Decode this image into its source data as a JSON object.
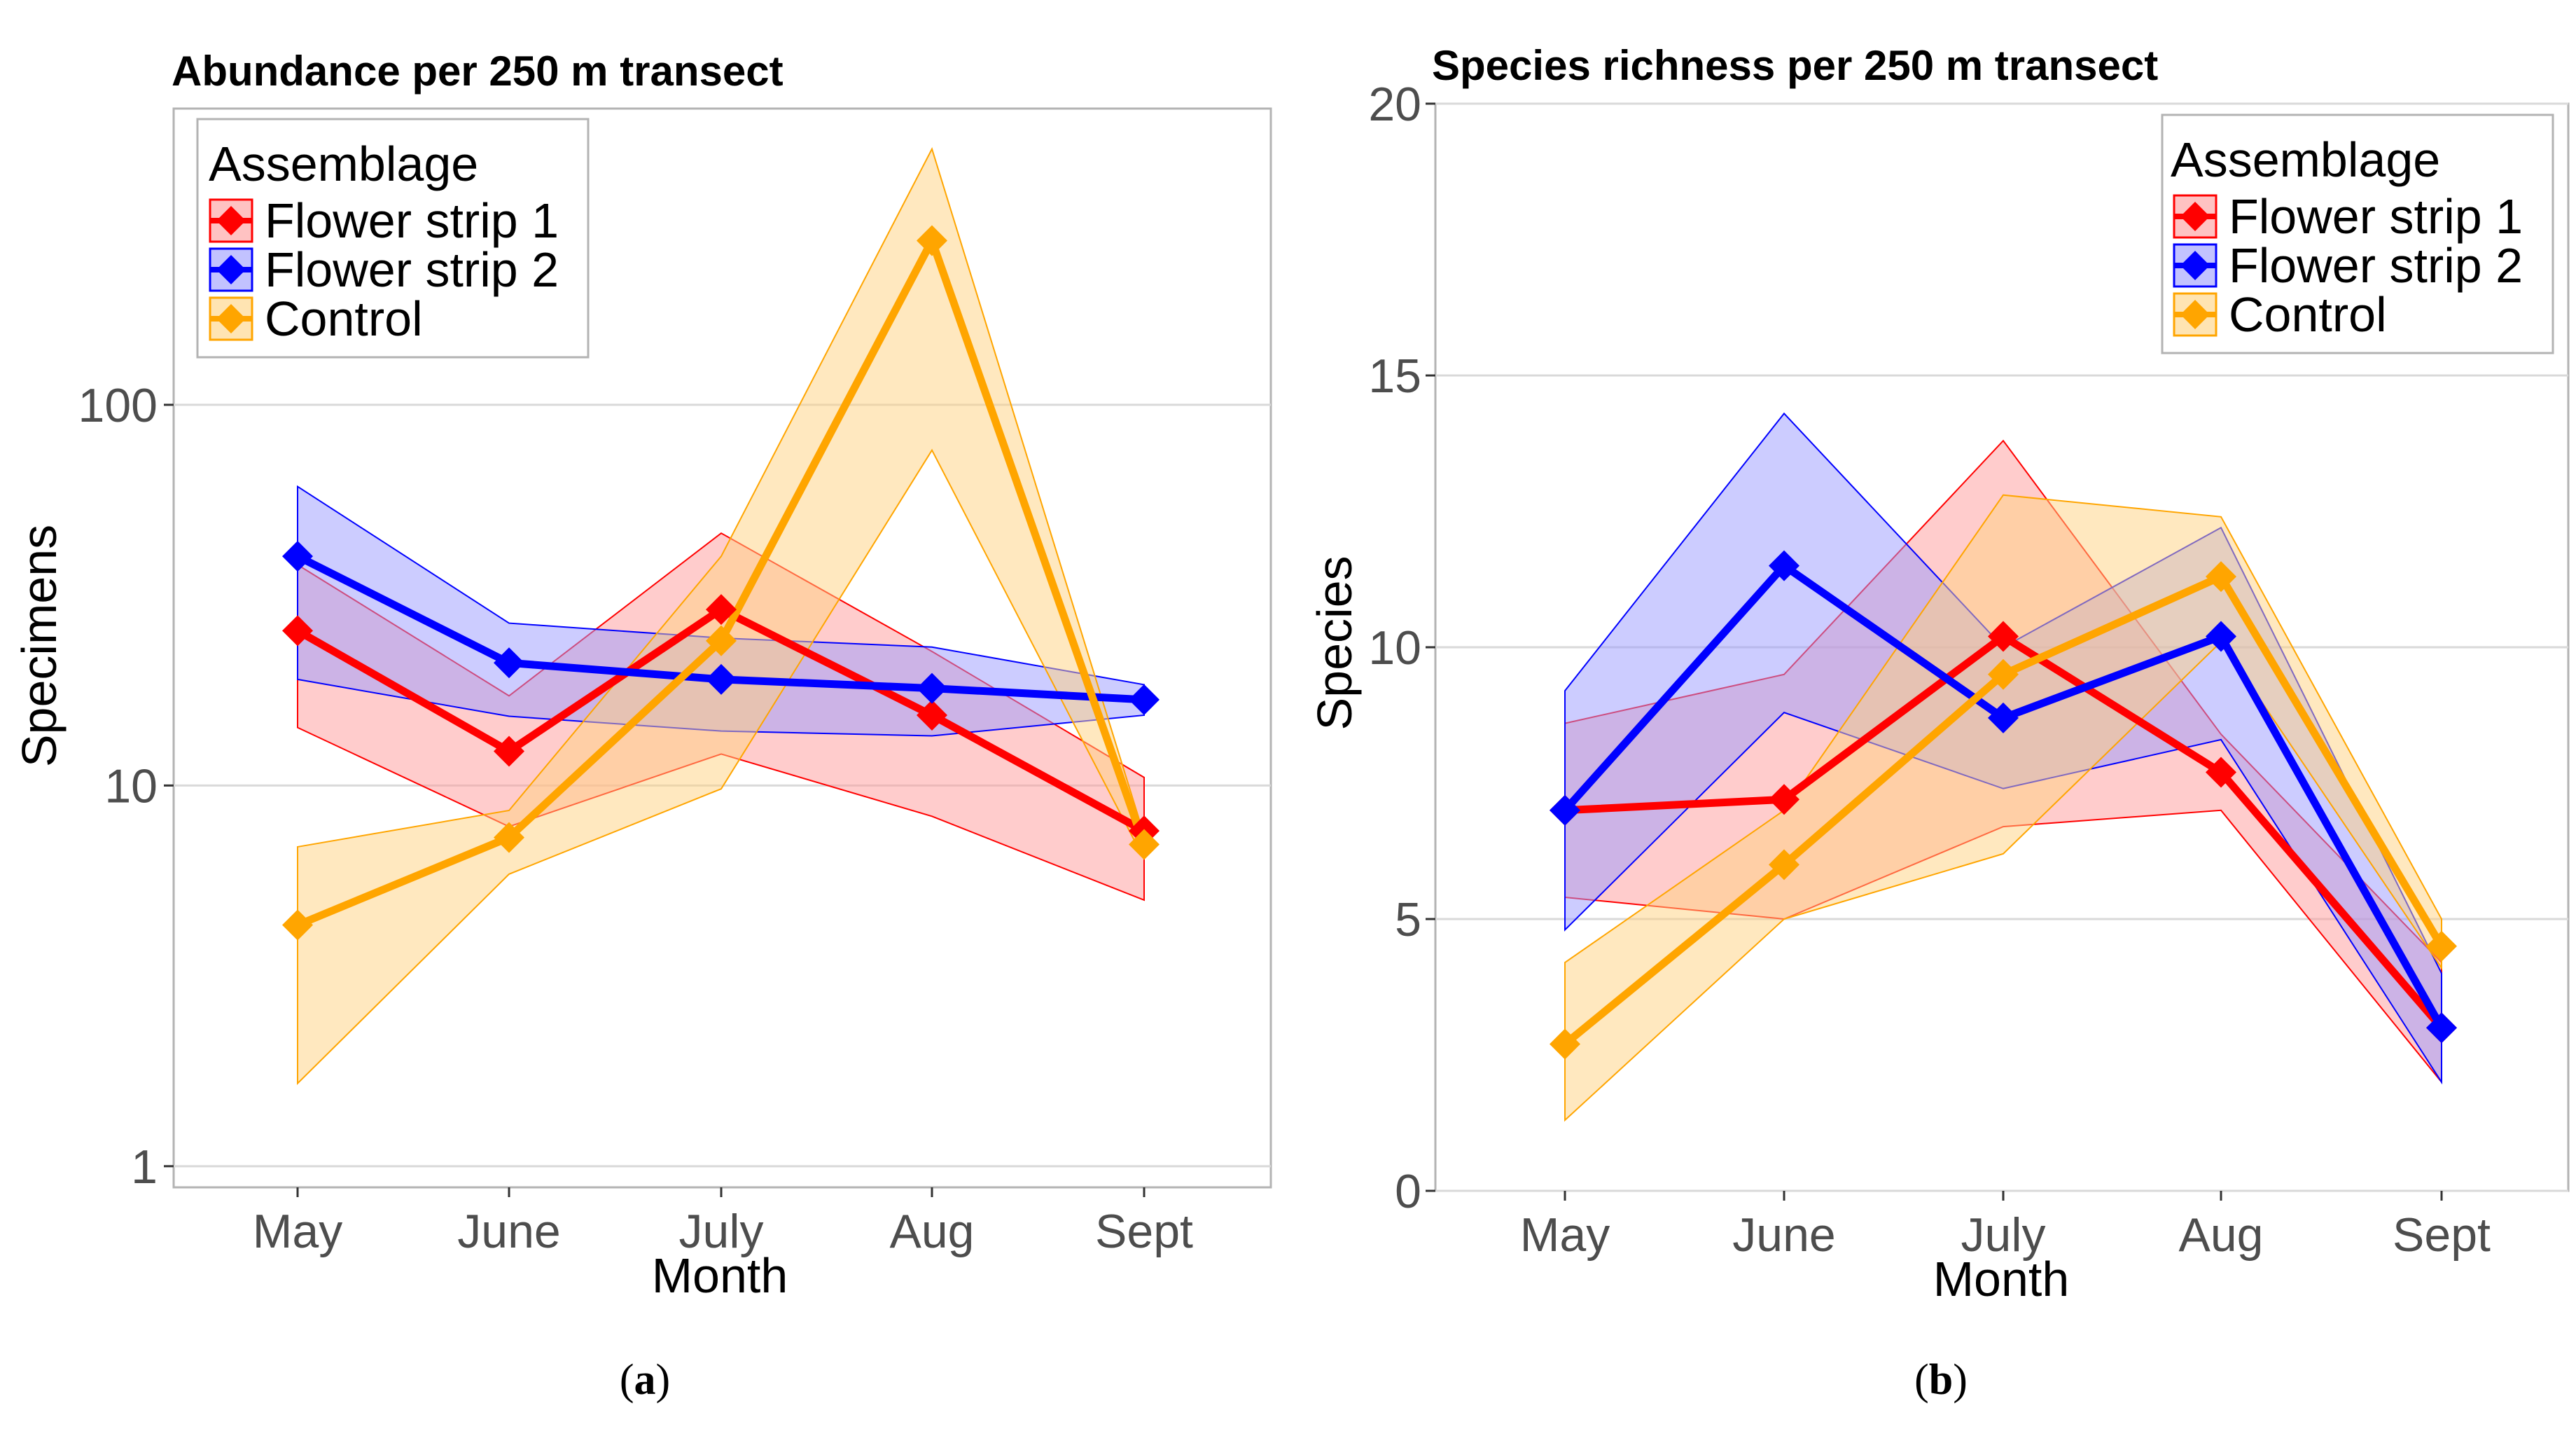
{
  "chart_data": [
    {
      "id": "a",
      "type": "line",
      "title": "Abundance per 250 m transect",
      "xlabel": "Month",
      "ylabel": "Specimens",
      "yscale": "log10",
      "ylim": [
        0.88,
        600
      ],
      "yticks": [
        1,
        10,
        100
      ],
      "ytick_labels": [
        "1",
        "10",
        "100"
      ],
      "categories": [
        "May",
        "June",
        "July",
        "Aug",
        "Sept"
      ],
      "legend_title": "Assemblage",
      "legend_position": "top-left",
      "caption_label": "a",
      "series": [
        {
          "name": "Flower strip 1",
          "color": "#ff0000",
          "fill": "#ff9999",
          "values": [
            25.5,
            12.3,
            29,
            15.3,
            7.6
          ],
          "lower": [
            14.2,
            7.8,
            12.1,
            8.3,
            5.0
          ],
          "upper": [
            38,
            17.2,
            46,
            22.5,
            10.5
          ]
        },
        {
          "name": "Flower strip 2",
          "color": "#0000ff",
          "fill": "#9999ff",
          "values": [
            40,
            21,
            19,
            18,
            16.8
          ],
          "lower": [
            19,
            15.2,
            13.9,
            13.5,
            15.3
          ],
          "upper": [
            61,
            26.7,
            24.4,
            23.1,
            18.4
          ]
        },
        {
          "name": "Control",
          "color": "#ffa500",
          "fill": "#ffd27f",
          "values": [
            4.3,
            7.3,
            24,
            270,
            7.0
          ],
          "lower": [
            1.65,
            5.85,
            9.8,
            76,
            6.4
          ],
          "upper": [
            6.9,
            8.6,
            40,
            470,
            7.4
          ]
        }
      ]
    },
    {
      "id": "b",
      "type": "line",
      "title": "Species richness per 250 m transect",
      "xlabel": "Month",
      "ylabel": "Species",
      "yscale": "linear",
      "ylim": [
        0,
        20
      ],
      "yticks": [
        0,
        5,
        10,
        15,
        20
      ],
      "ytick_labels": [
        "0",
        "5",
        "10",
        "15",
        "20"
      ],
      "categories": [
        "May",
        "June",
        "July",
        "Aug",
        "Sept"
      ],
      "legend_title": "Assemblage",
      "legend_position": "top-right",
      "caption_label": "b",
      "series": [
        {
          "name": "Flower strip 1",
          "color": "#ff0000",
          "fill": "#ff9999",
          "values": [
            7.0,
            7.2,
            10.2,
            7.7,
            3.0
          ],
          "lower": [
            5.4,
            5.0,
            6.7,
            7.0,
            2.0
          ],
          "upper": [
            8.6,
            9.5,
            13.8,
            8.4,
            4.2
          ]
        },
        {
          "name": "Flower strip 2",
          "color": "#0000ff",
          "fill": "#9999ff",
          "values": [
            7.0,
            11.5,
            8.7,
            10.2,
            3.0
          ],
          "lower": [
            4.8,
            8.8,
            7.4,
            8.3,
            2.0
          ],
          "upper": [
            9.2,
            14.3,
            10.0,
            12.2,
            4.0
          ]
        },
        {
          "name": "Control",
          "color": "#ffa500",
          "fill": "#ffd27f",
          "values": [
            2.7,
            6.0,
            9.5,
            11.3,
            4.5
          ],
          "lower": [
            1.3,
            5.0,
            6.2,
            10.1,
            4.1
          ],
          "upper": [
            4.2,
            7.0,
            12.8,
            12.4,
            5.0
          ]
        }
      ]
    }
  ]
}
